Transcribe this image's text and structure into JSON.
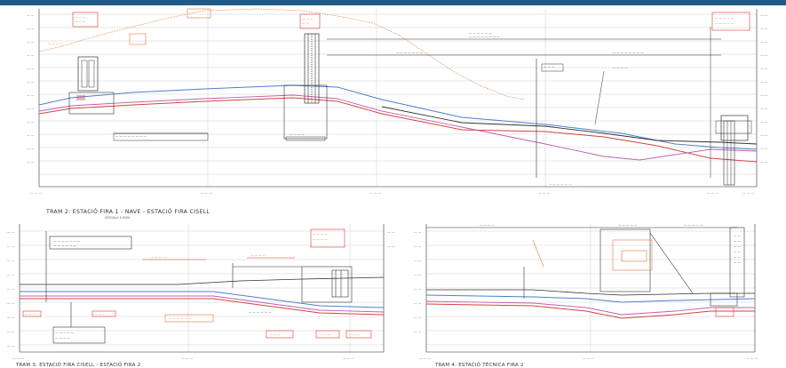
{
  "drawing": {
    "top_caption": "TRAM 2: ESTACIÓ FIRA 1 - NAVE - ESTACIÓ FIRA CISELL",
    "top_subcaption": "(ESCALA 1:500)",
    "bottom_left_caption": "TRAM 3: ESTACIÓ FIRA CISELL - ESTACIÓ FIRA 2",
    "bottom_right_caption": "TRAM 4: ESTACIÓ TÈCNICA FIRA 2",
    "colors": {
      "top_bar": "#1f5a8a",
      "grid": "#c9c9c9",
      "profile_blue": "#4f7fc9",
      "profile_red": "#d0453f",
      "profile_magenta": "#c061a8",
      "profile_black": "#333333",
      "annotation_orange": "#e07a3c",
      "annotation_red": "#d93a2e"
    }
  }
}
